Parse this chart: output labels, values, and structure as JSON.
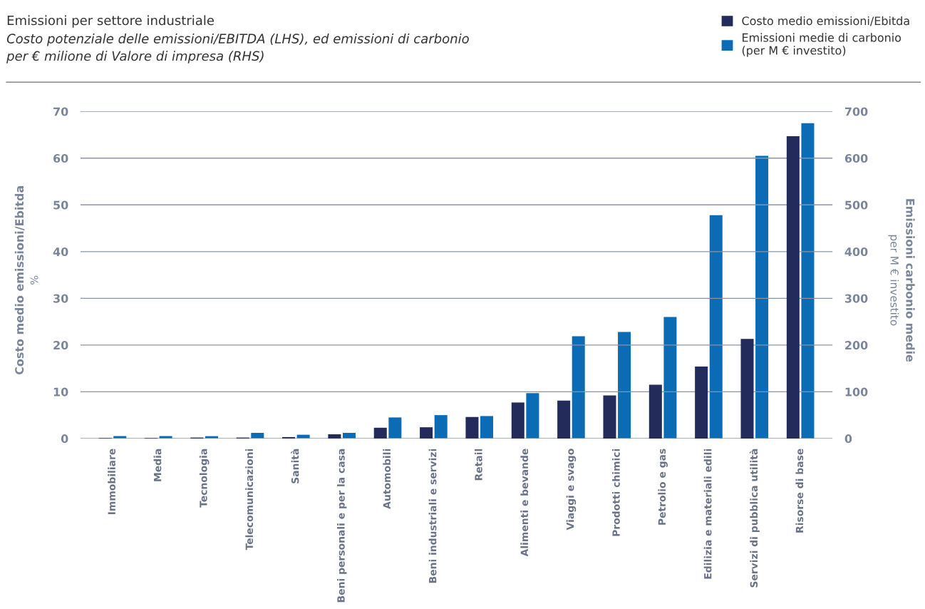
{
  "chart_data": {
    "type": "bar",
    "title": "Emissioni per settore industriale",
    "subtitle": "Costo potenziale delle emissioni/EBITDA (LHS), ed emissioni di carbonio\nper € milione di Valore di impresa (RHS)",
    "ylabel": "Costo medio emissioni/Ebitda\n%",
    "y2label": "Emissioni carbonio medie\nper M € investito",
    "categories": [
      "Immobiliare",
      "Media",
      "Tecnologia",
      "Telecomunicazioni",
      "Sanità",
      "Beni personali e per la casa",
      "Automobili",
      "Beni industriali e servizi",
      "Retail",
      "Alimenti e bevande",
      "Viaggi e svago",
      "Prodotti chimici",
      "Petrolio e gas",
      "Edilizia e materiali edili",
      "Servizi di pubblica utilità",
      "Risorse di base"
    ],
    "series": [
      {
        "name": "Costo medio emissioni/Ebitda",
        "color": "#222b5b",
        "values": [
          0.1,
          0.1,
          0.2,
          0.2,
          0.3,
          0.9,
          2.3,
          2.4,
          4.6,
          7.7,
          8.1,
          9.2,
          11.5,
          15.4,
          21.3,
          64.7
        ]
      },
      {
        "name": "Emissioni medie di carbonio\n(per M € investito)",
        "color": "#0b6cb5",
        "axis": "y2",
        "values": [
          5,
          5,
          5,
          12,
          8,
          12,
          45,
          50,
          48,
          97,
          219,
          228,
          260,
          478,
          605,
          675
        ]
      }
    ],
    "ylim": [
      0,
      70
    ],
    "yticks": [
      0,
      10,
      20,
      30,
      40,
      50,
      60,
      70
    ],
    "y2lim": [
      0,
      700
    ],
    "y2ticks": [
      0,
      100,
      200,
      300,
      400,
      500,
      600,
      700
    ],
    "grid": "y",
    "legend": "top right"
  }
}
